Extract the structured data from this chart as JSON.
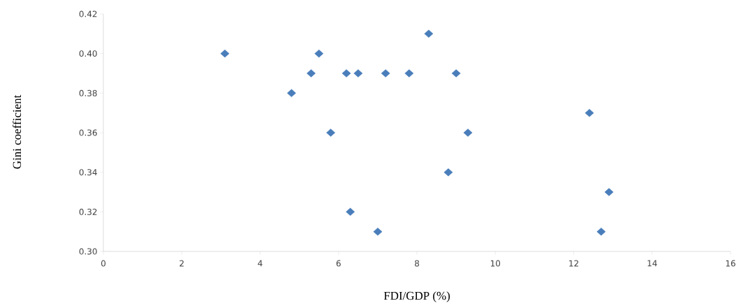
{
  "chart_data": {
    "type": "scatter",
    "xlabel": "FDI/GDP (%)",
    "ylabel": "Gini coefficient",
    "x": [
      3.1,
      5.5,
      8.3,
      5.3,
      6.2,
      6.5,
      7.2,
      7.8,
      9.0,
      4.8,
      12.4,
      5.8,
      9.3,
      8.8,
      12.9,
      6.3,
      7.0,
      12.7
    ],
    "values": [
      0.4,
      0.4,
      0.41,
      0.39,
      0.39,
      0.39,
      0.39,
      0.39,
      0.39,
      0.38,
      0.37,
      0.36,
      0.36,
      0.34,
      0.33,
      0.32,
      0.31,
      0.31
    ],
    "color": "#4a7ebb",
    "marker": "diamond",
    "xlim": [
      0,
      16
    ],
    "xticks": [
      0,
      2,
      4,
      6,
      8,
      10,
      12,
      14,
      16
    ],
    "ylim": [
      0.3,
      0.42
    ],
    "yticks": [
      {
        "value": 0.3,
        "label": "0.30"
      },
      {
        "value": 0.32,
        "label": "0.32"
      },
      {
        "value": 0.34,
        "label": "0.34"
      },
      {
        "value": 0.36,
        "label": "0.36"
      },
      {
        "value": 0.38,
        "label": "0.38"
      },
      {
        "value": 0.4,
        "label": "0.40"
      },
      {
        "value": 0.42,
        "label": "0.42"
      }
    ],
    "line_style": "none"
  }
}
